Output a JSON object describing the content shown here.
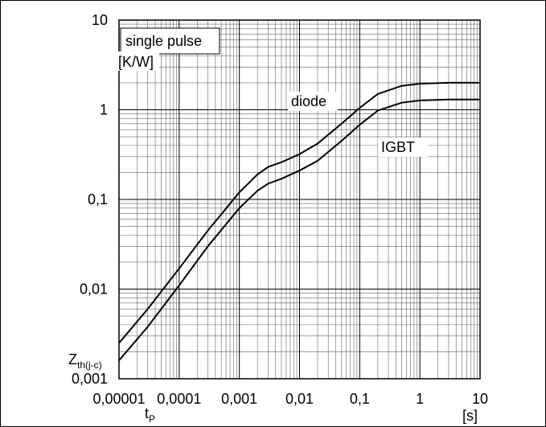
{
  "chart_data": {
    "type": "line",
    "log_x": true,
    "log_y": true,
    "grid": true,
    "minor_grid": true,
    "annotation_box": "single pulse",
    "y_unit": "[K/W]",
    "y_label": {
      "main": "Z",
      "sub": "th(j-c)"
    },
    "x_label": {
      "main": "t",
      "sub": "P"
    },
    "x_unit": "[s]",
    "xlim": [
      1e-05,
      10
    ],
    "ylim": [
      0.001,
      10
    ],
    "xticks": [
      {
        "value": 1e-05,
        "label": "0,00001"
      },
      {
        "value": 0.0001,
        "label": "0,0001"
      },
      {
        "value": 0.001,
        "label": "0,001"
      },
      {
        "value": 0.01,
        "label": "0,01"
      },
      {
        "value": 0.1,
        "label": "0,1"
      },
      1,
      10
    ],
    "yticks": [
      {
        "value": 0.001,
        "label": "0,001"
      },
      {
        "value": 0.01,
        "label": "0,01"
      },
      {
        "value": 0.1,
        "label": "0,1"
      },
      1,
      10
    ],
    "x": [
      1e-05,
      3e-05,
      0.0001,
      0.0003,
      0.001,
      0.002,
      0.003,
      0.005,
      0.01,
      0.02,
      0.05,
      0.1,
      0.2,
      0.5,
      1,
      3,
      10
    ],
    "series": [
      {
        "name": "diode",
        "color": "#000000",
        "values": [
          0.0025,
          0.006,
          0.017,
          0.045,
          0.12,
          0.19,
          0.23,
          0.26,
          0.32,
          0.42,
          0.7,
          1.05,
          1.5,
          1.85,
          1.95,
          2.0,
          2.0
        ]
      },
      {
        "name": "IGBT",
        "color": "#000000",
        "values": [
          0.0016,
          0.0038,
          0.011,
          0.03,
          0.08,
          0.125,
          0.15,
          0.17,
          0.21,
          0.27,
          0.45,
          0.68,
          0.98,
          1.2,
          1.27,
          1.3,
          1.3
        ]
      }
    ]
  }
}
